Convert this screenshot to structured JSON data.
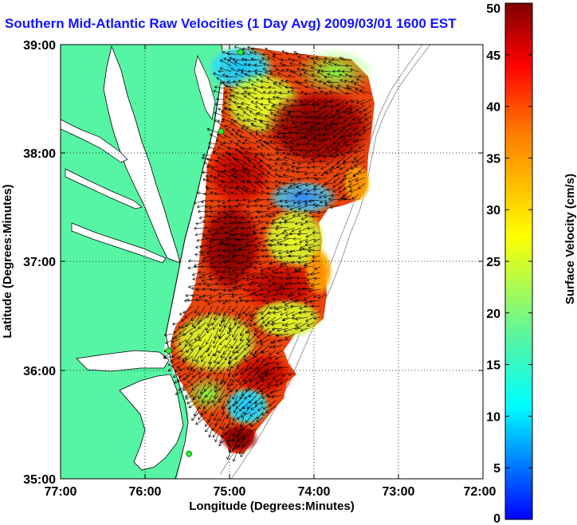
{
  "title": "Southern Mid-Atlantic Raw Velocities (1 Day Avg) 2009/03/01 1600 EST",
  "axes": {
    "xlabel": "Longitude (Degrees:Minutes)",
    "ylabel": "Latitude (Degrees:Minutes)",
    "x_ticks": [
      "77:00",
      "76:00",
      "75:00",
      "74:00",
      "73:00",
      "72:00"
    ],
    "y_ticks": [
      "39:00",
      "38:00",
      "37:00",
      "36:00",
      "35:00"
    ],
    "xlim": [
      -77,
      -72
    ],
    "ylim": [
      35,
      39
    ]
  },
  "colorbar": {
    "label": "Surface Velocity (cm/s)",
    "ticks": [
      "0",
      "5",
      "10",
      "15",
      "20",
      "25",
      "30",
      "35",
      "40",
      "45",
      "50"
    ],
    "range": [
      0,
      50
    ]
  },
  "colors": {
    "land": "#55f5a3",
    "title": "#1414ff",
    "station": "#33ee33"
  },
  "stations": [
    {
      "lon": -74.87,
      "lat": 38.93
    },
    {
      "lon": -75.1,
      "lat": 38.2
    },
    {
      "lon": -75.72,
      "lat": 36.18
    },
    {
      "lon": -75.48,
      "lat": 35.23
    }
  ]
}
